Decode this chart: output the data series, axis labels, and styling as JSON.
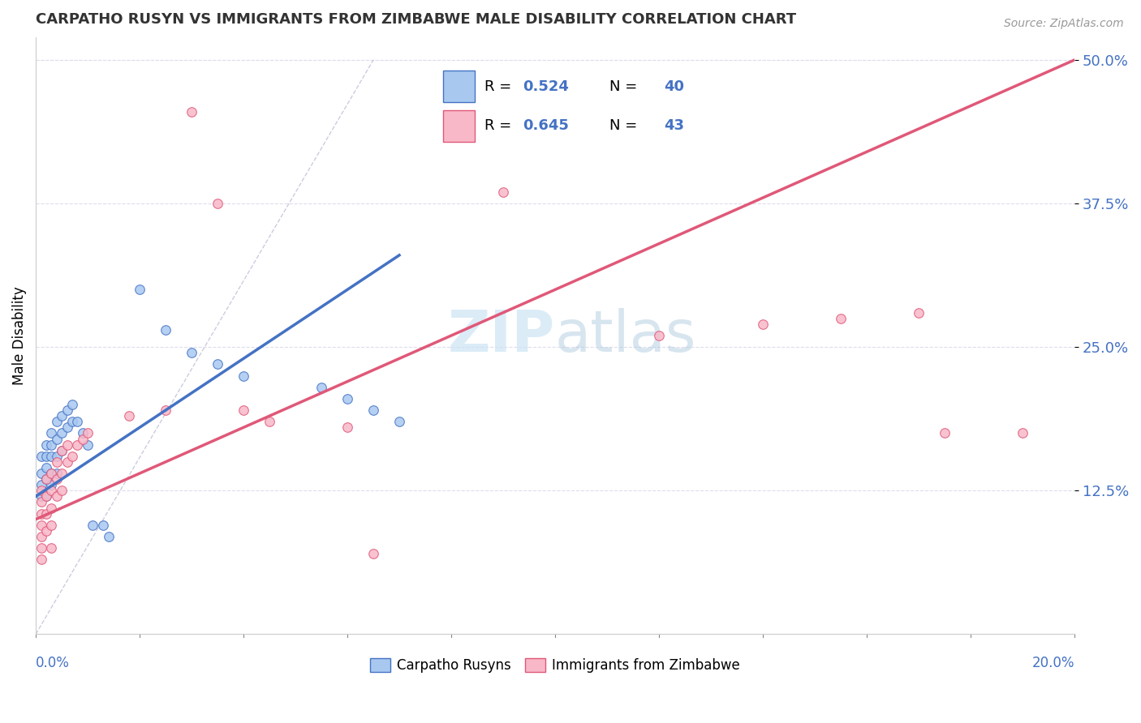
{
  "title": "CARPATHO RUSYN VS IMMIGRANTS FROM ZIMBABWE MALE DISABILITY CORRELATION CHART",
  "source": "Source: ZipAtlas.com",
  "ylabel": "Male Disability",
  "ytick_labels": [
    "12.5%",
    "25.0%",
    "37.5%",
    "50.0%"
  ],
  "ytick_values": [
    0.125,
    0.25,
    0.375,
    0.5
  ],
  "xlim": [
    0.0,
    0.2
  ],
  "ylim": [
    0.0,
    0.52
  ],
  "r_blue": "0.524",
  "n_blue": "40",
  "r_pink": "0.645",
  "n_pink": "43",
  "blue_scatter_color": "#a8c8f0",
  "pink_scatter_color": "#f8b8c8",
  "blue_line_color": "#4472c4",
  "pink_line_color": "#e05878",
  "legend_text_color": "#4472c4",
  "grid_color": "#ddddee",
  "watermark_color": "#cce4f5",
  "blue_scatter": [
    [
      0.001,
      0.155
    ],
    [
      0.001,
      0.14
    ],
    [
      0.001,
      0.13
    ],
    [
      0.001,
      0.12
    ],
    [
      0.002,
      0.165
    ],
    [
      0.002,
      0.155
    ],
    [
      0.002,
      0.145
    ],
    [
      0.002,
      0.135
    ],
    [
      0.002,
      0.12
    ],
    [
      0.003,
      0.175
    ],
    [
      0.003,
      0.165
    ],
    [
      0.003,
      0.155
    ],
    [
      0.003,
      0.14
    ],
    [
      0.003,
      0.13
    ],
    [
      0.004,
      0.185
    ],
    [
      0.004,
      0.17
    ],
    [
      0.004,
      0.155
    ],
    [
      0.004,
      0.14
    ],
    [
      0.005,
      0.19
    ],
    [
      0.005,
      0.175
    ],
    [
      0.005,
      0.16
    ],
    [
      0.006,
      0.195
    ],
    [
      0.006,
      0.18
    ],
    [
      0.007,
      0.2
    ],
    [
      0.007,
      0.185
    ],
    [
      0.008,
      0.185
    ],
    [
      0.009,
      0.175
    ],
    [
      0.01,
      0.165
    ],
    [
      0.011,
      0.095
    ],
    [
      0.013,
      0.095
    ],
    [
      0.014,
      0.085
    ],
    [
      0.02,
      0.3
    ],
    [
      0.025,
      0.265
    ],
    [
      0.03,
      0.245
    ],
    [
      0.035,
      0.235
    ],
    [
      0.04,
      0.225
    ],
    [
      0.055,
      0.215
    ],
    [
      0.06,
      0.205
    ],
    [
      0.065,
      0.195
    ],
    [
      0.07,
      0.185
    ]
  ],
  "pink_scatter": [
    [
      0.001,
      0.125
    ],
    [
      0.001,
      0.115
    ],
    [
      0.001,
      0.105
    ],
    [
      0.001,
      0.095
    ],
    [
      0.001,
      0.085
    ],
    [
      0.001,
      0.075
    ],
    [
      0.001,
      0.065
    ],
    [
      0.002,
      0.135
    ],
    [
      0.002,
      0.12
    ],
    [
      0.002,
      0.105
    ],
    [
      0.002,
      0.09
    ],
    [
      0.003,
      0.14
    ],
    [
      0.003,
      0.125
    ],
    [
      0.003,
      0.11
    ],
    [
      0.003,
      0.095
    ],
    [
      0.003,
      0.075
    ],
    [
      0.004,
      0.15
    ],
    [
      0.004,
      0.135
    ],
    [
      0.004,
      0.12
    ],
    [
      0.005,
      0.16
    ],
    [
      0.005,
      0.14
    ],
    [
      0.005,
      0.125
    ],
    [
      0.006,
      0.165
    ],
    [
      0.006,
      0.15
    ],
    [
      0.007,
      0.155
    ],
    [
      0.008,
      0.165
    ],
    [
      0.009,
      0.17
    ],
    [
      0.01,
      0.175
    ],
    [
      0.018,
      0.19
    ],
    [
      0.025,
      0.195
    ],
    [
      0.03,
      0.455
    ],
    [
      0.035,
      0.375
    ],
    [
      0.04,
      0.195
    ],
    [
      0.045,
      0.185
    ],
    [
      0.06,
      0.18
    ],
    [
      0.065,
      0.07
    ],
    [
      0.14,
      0.27
    ],
    [
      0.155,
      0.275
    ],
    [
      0.17,
      0.28
    ],
    [
      0.175,
      0.175
    ],
    [
      0.19,
      0.175
    ],
    [
      0.09,
      0.385
    ],
    [
      0.12,
      0.26
    ]
  ],
  "blue_trendline": [
    0.0,
    0.07
  ],
  "pink_trendline": [
    0.0,
    0.2
  ]
}
